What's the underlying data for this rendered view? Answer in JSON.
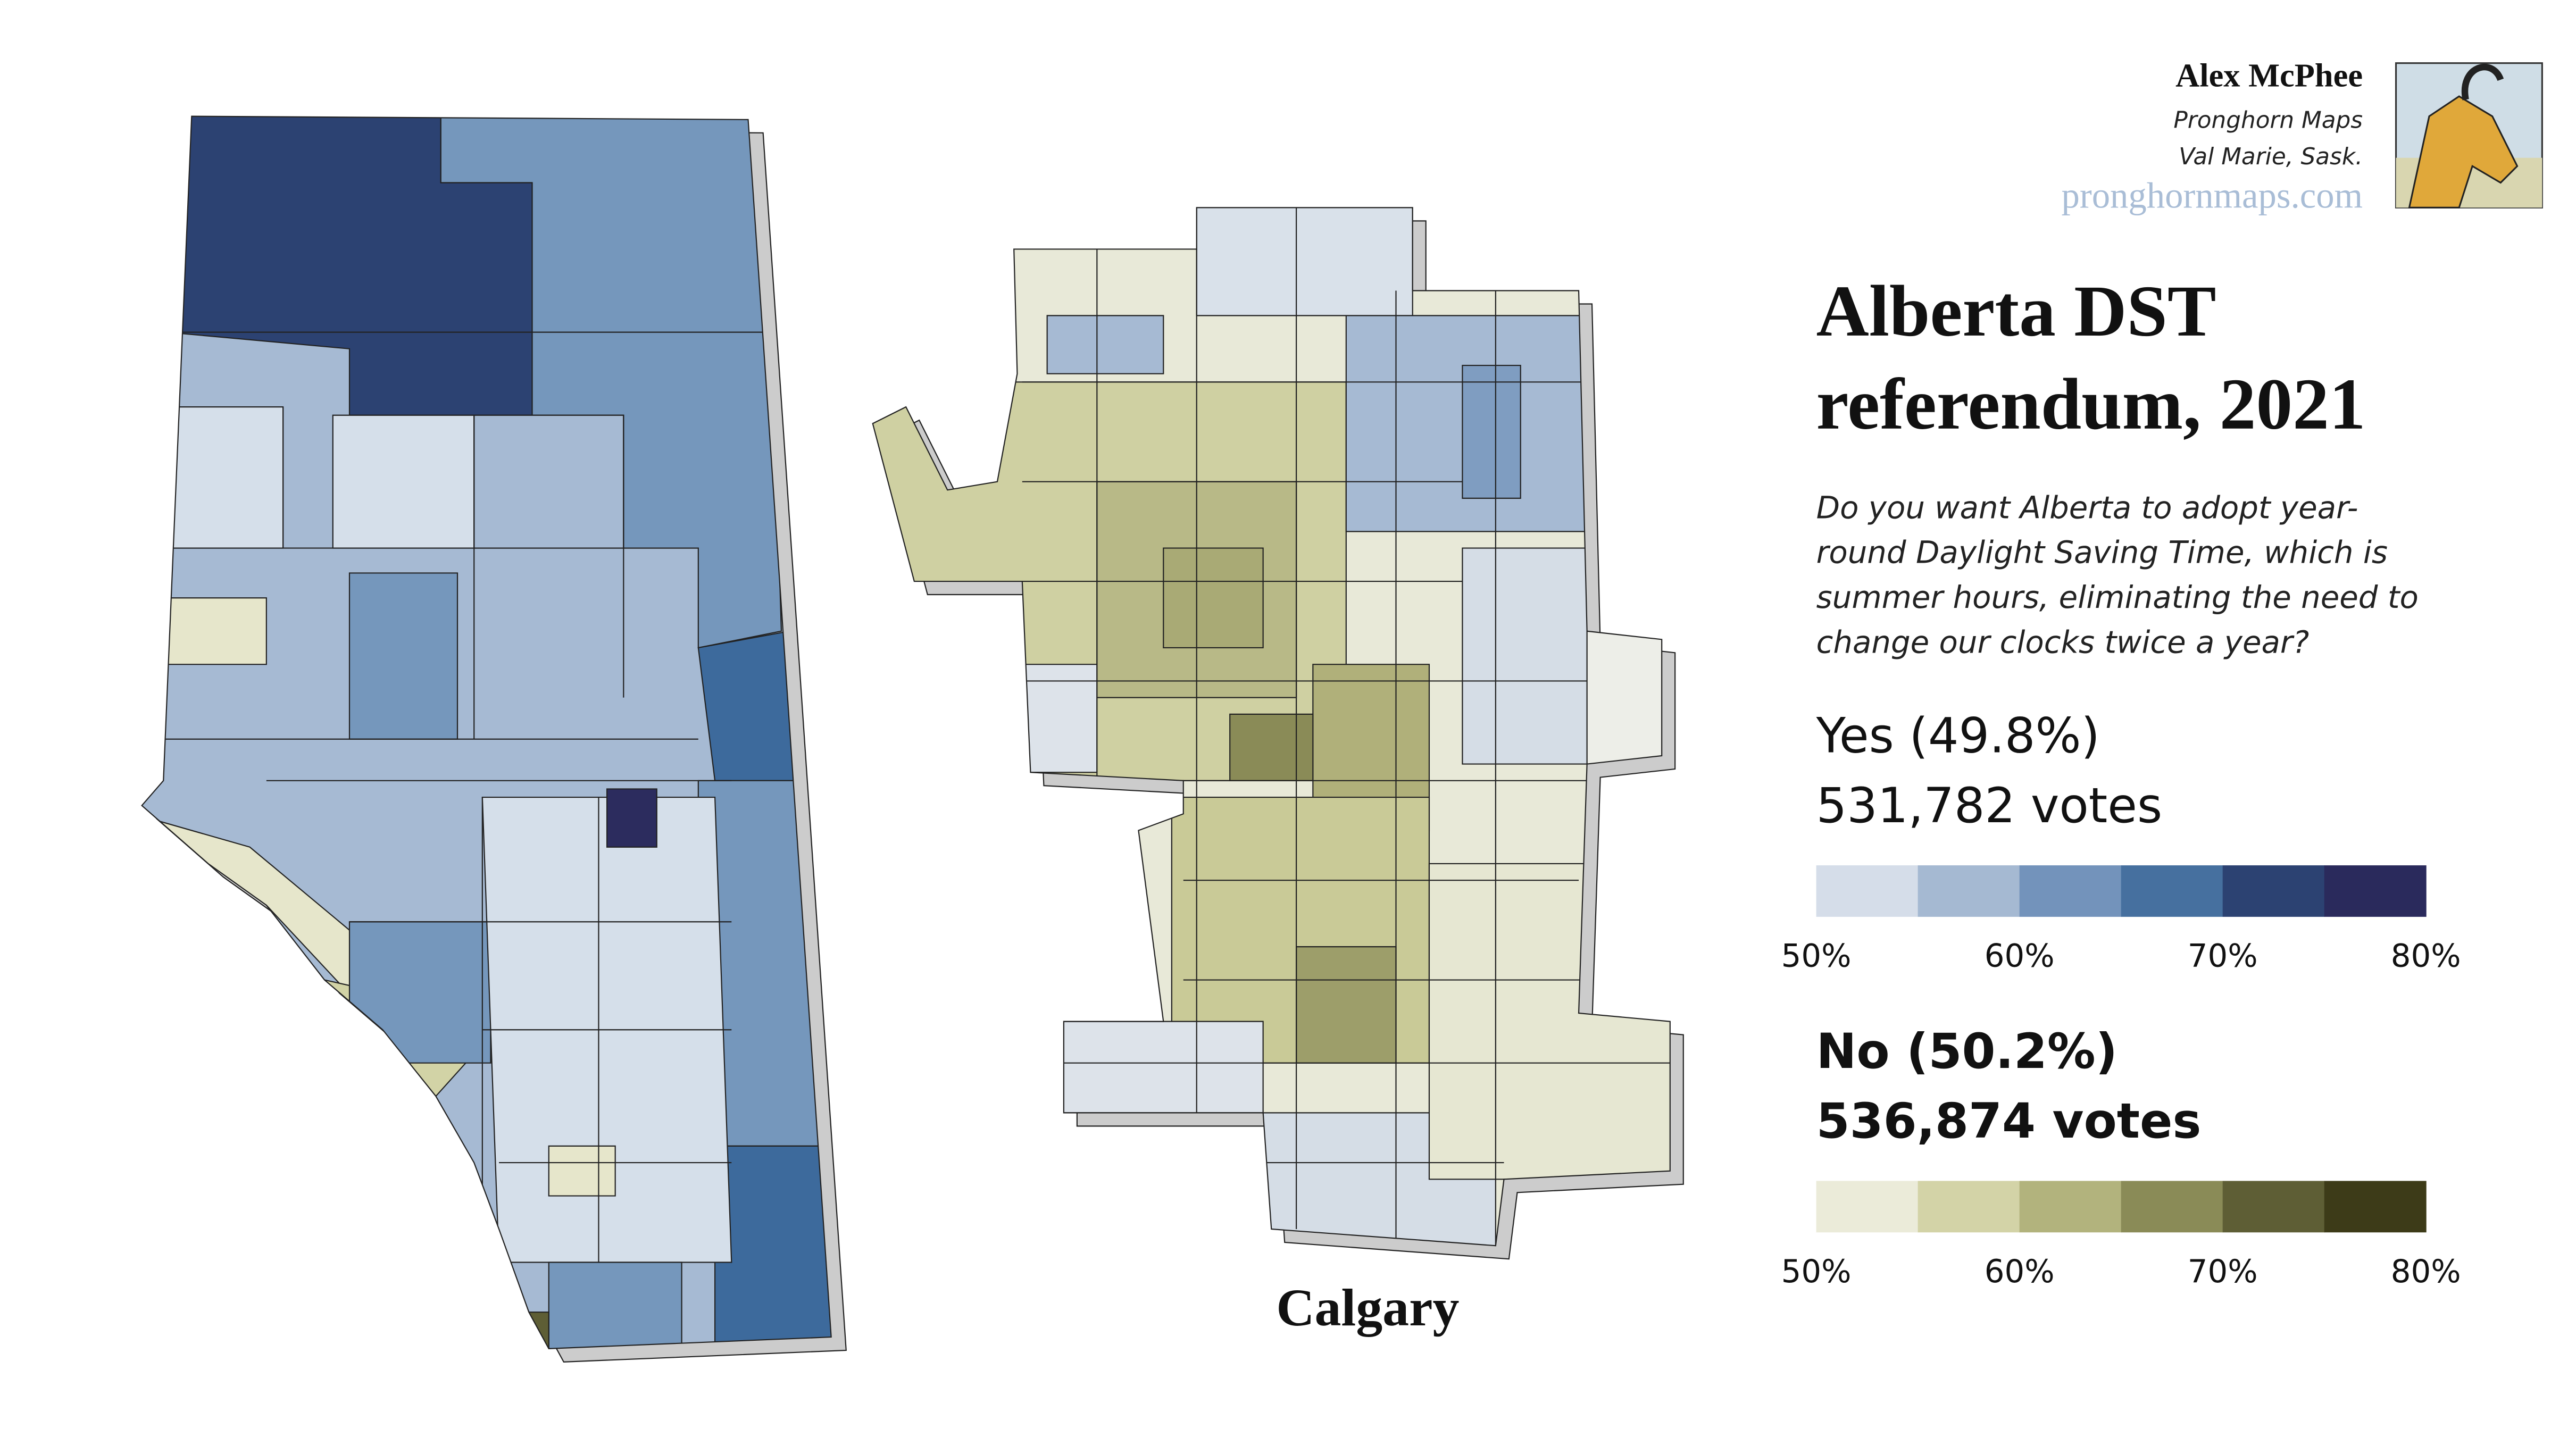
{
  "author": {
    "name": "Alex McPhee",
    "org": "Pronghorn Maps",
    "location": "Val Marie, Sask.",
    "website": "pronghornmaps.com"
  },
  "title_lines": [
    "Alberta DST",
    "referendum, 2021"
  ],
  "question_lines": [
    "Do you want Alberta to adopt year-",
    "round Daylight Saving Time, which is",
    "summer hours, eliminating the need to",
    "change our clocks twice a year?"
  ],
  "yes": {
    "label": "Yes (49.8%)",
    "votes": "531,782 votes",
    "colors": [
      "#d5dde9",
      "#a5b9d2",
      "#7393bb",
      "#46709f",
      "#2c4272",
      "#2a2a5c"
    ],
    "ticks": [
      "50%",
      "60%",
      "70%",
      "80%"
    ]
  },
  "no": {
    "label": "No (50.2%)",
    "votes": "536,874 votes",
    "colors": [
      "#ebebd9",
      "#d3d3a7",
      "#b2b37d",
      "#8a8b57",
      "#5e5e35",
      "#3d3b18"
    ],
    "ticks": [
      "50%",
      "60%",
      "70%",
      "80%"
    ]
  },
  "caption": "Calgary"
}
